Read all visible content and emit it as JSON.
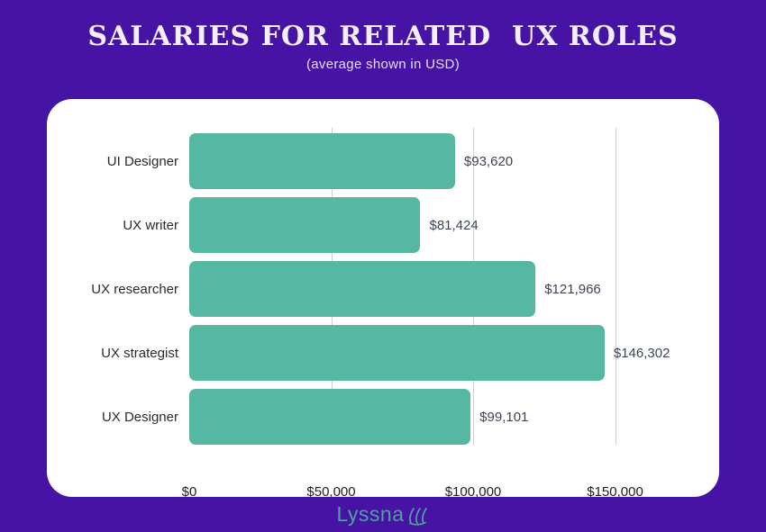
{
  "header": {
    "title": "SALARIES FOR RELATED  UX ROLES",
    "subtitle": "(average shown in USD)"
  },
  "chart_data": {
    "type": "bar",
    "orientation": "horizontal",
    "title": "SALARIES FOR RELATED UX ROLES",
    "subtitle": "(average shown in USD)",
    "categories": [
      "UI Designer",
      "UX writer",
      "UX researcher",
      "UX strategist",
      "UX Designer"
    ],
    "values": [
      93620,
      81424,
      121966,
      146302,
      99101
    ],
    "value_labels": [
      "$93,620",
      "$81,424",
      "$121,966",
      "$146,302",
      "$99,101"
    ],
    "x_ticks": [
      {
        "value": 0,
        "label": "$0"
      },
      {
        "value": 50000,
        "label": "$50,000"
      },
      {
        "value": 100000,
        "label": "$100,000"
      },
      {
        "value": 150000,
        "label": "$150,000"
      }
    ],
    "xlim": [
      0,
      176500
    ],
    "xlabel": "",
    "ylabel": "",
    "grid": "vertical-only",
    "legend": "none",
    "bar_color": "#56b8a2"
  },
  "footer": {
    "logo_text": "Lyssna",
    "logo_icon": "lyssna-waves-icon"
  },
  "colors": {
    "background": "#4613a4",
    "card": "#ffffff",
    "bar": "#56b8a2",
    "title_text": "#f4eef9",
    "value_text": "#3c4557",
    "gridline": "#cfcfcf",
    "logo": "#4fa09e"
  }
}
